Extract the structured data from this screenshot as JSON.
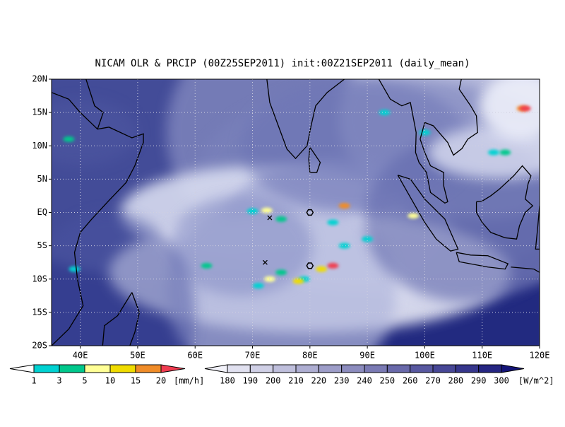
{
  "title": "NICAM OLR & PRCIP (00Z25SEP2011) init:00Z21SEP2011 (daily_mean)",
  "lat_labels": [
    "20N",
    "15N",
    "10N",
    "5N",
    "EQ",
    "5S",
    "10S",
    "15S",
    "20S"
  ],
  "lon_labels": [
    "40E",
    "50E",
    "60E",
    "70E",
    "80E",
    "90E",
    "100E",
    "110E",
    "120E"
  ],
  "precip_legend": {
    "labels": [
      "1",
      "3",
      "5",
      "10",
      "15",
      "20"
    ],
    "unit": "[mm/h]"
  },
  "olr_legend": {
    "labels": [
      "180",
      "190",
      "200",
      "210",
      "220",
      "230",
      "240",
      "250",
      "260",
      "270",
      "280",
      "290",
      "300"
    ],
    "unit": "[W/m^2]"
  }
}
